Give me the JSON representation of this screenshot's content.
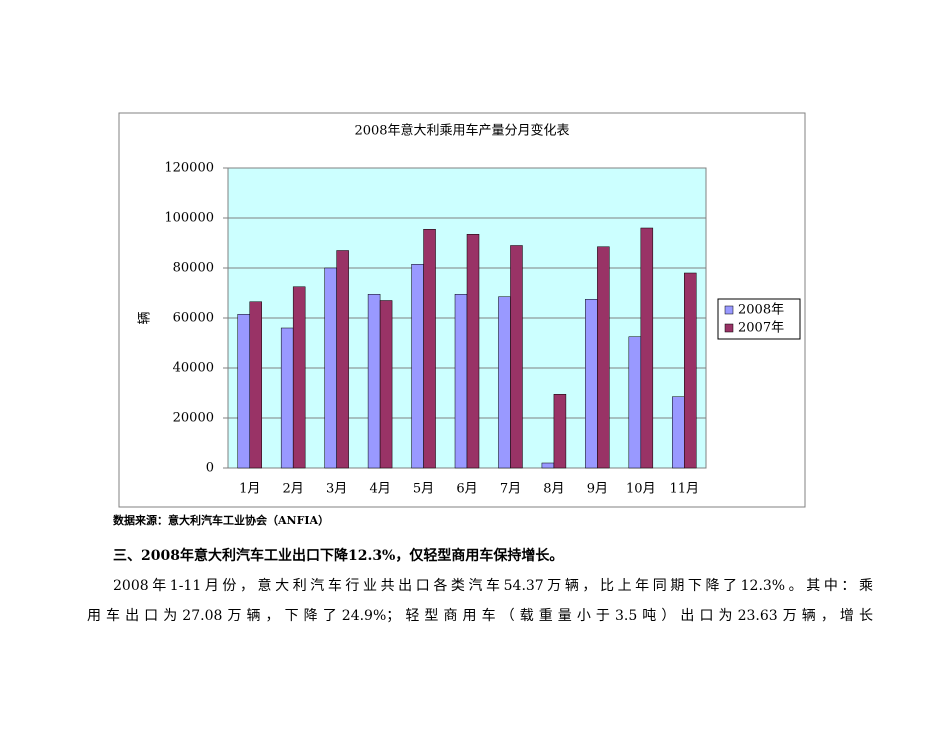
{
  "chart_data": {
    "type": "bar",
    "title": "2008年意大利乘用车产量分月变化表",
    "y_label": "辆",
    "categories": [
      "1月",
      "2月",
      "3月",
      "4月",
      "5月",
      "6月",
      "7月",
      "8月",
      "9月",
      "10月",
      "11月"
    ],
    "series": [
      {
        "name": "2008年",
        "color": "#9999ff",
        "values": [
          61500,
          56000,
          80000,
          69500,
          81500,
          69500,
          68500,
          2000,
          67500,
          52500,
          28500
        ]
      },
      {
        "name": "2007年",
        "color": "#993366",
        "values": [
          66500,
          72500,
          87000,
          67000,
          95500,
          93500,
          89000,
          29500,
          88500,
          96000,
          78000
        ]
      }
    ],
    "ylim": [
      0,
      120000
    ],
    "yticks": [
      0,
      20000,
      40000,
      60000,
      80000,
      100000,
      120000
    ],
    "grid": true,
    "legend": "right"
  },
  "source": "数据来源：意大利汽车工业协会（ANFIA）",
  "heading": "三、2008年意大利汽车工业出口下降12.3%，仅轻型商用车保持增长。",
  "paragraph": [
    "2008年1-11月份，意大利汽车行业共出口各类汽车54.37万辆，比上年同期下降了12.3%。其中：乘",
    "用车出口为27.08万辆，下降了24.9%；轻型商用车（载重量小于3.5吨）出口为23.63万辆，增长"
  ]
}
